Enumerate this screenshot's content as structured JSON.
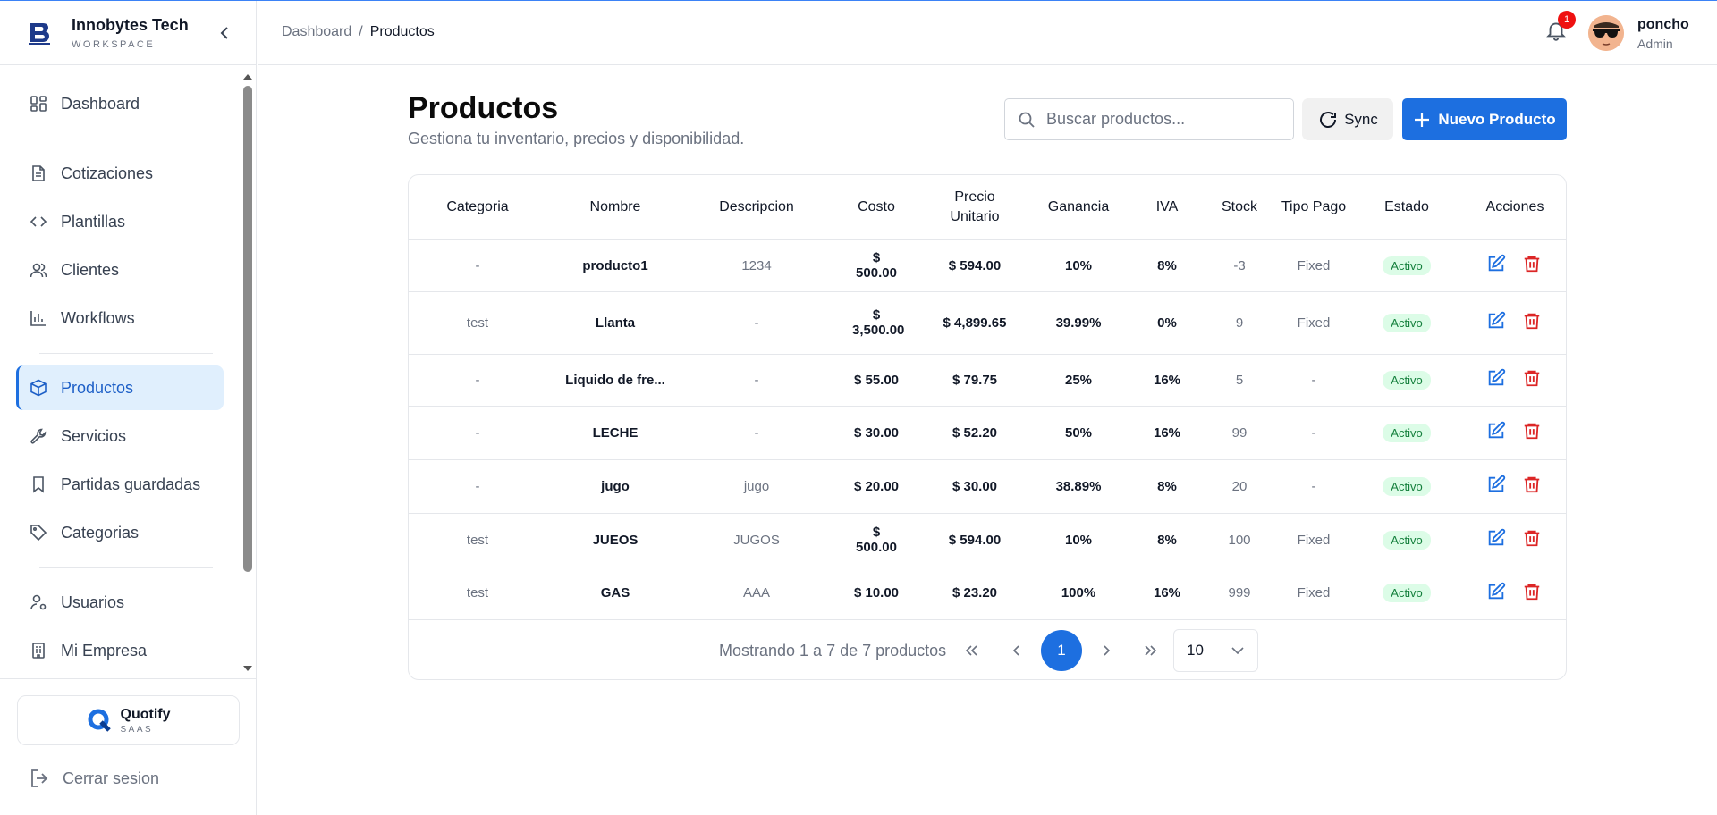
{
  "brand": {
    "name": "Innobytes Tech",
    "sub": "WORKSPACE"
  },
  "sidebar": {
    "items": [
      {
        "label": "Dashboard",
        "icon": "dashboard-icon"
      },
      {
        "label": "Cotizaciones",
        "icon": "document-icon"
      },
      {
        "label": "Plantillas",
        "icon": "code-icon"
      },
      {
        "label": "Clientes",
        "icon": "users-icon"
      },
      {
        "label": "Workflows",
        "icon": "bar-chart-icon"
      },
      {
        "label": "Productos",
        "icon": "box-icon",
        "active": true
      },
      {
        "label": "Servicios",
        "icon": "wrench-icon"
      },
      {
        "label": "Partidas guardadas",
        "icon": "bookmark-icon"
      },
      {
        "label": "Categorias",
        "icon": "tag-icon"
      },
      {
        "label": "Usuarios",
        "icon": "user-gear-icon"
      },
      {
        "label": "Mi Empresa",
        "icon": "building-icon"
      }
    ],
    "footer": {
      "name": "Quotify",
      "sub": "SAAS"
    },
    "logout": "Cerrar sesion"
  },
  "header": {
    "breadcrumb": {
      "parent": "Dashboard",
      "separator": "/",
      "current": "Productos"
    },
    "notifications": "1",
    "user": {
      "name": "poncho",
      "role": "Admin"
    }
  },
  "main": {
    "title": "Productos",
    "subtitle": "Gestiona tu inventario, precios y disponibilidad.",
    "search_placeholder": "Buscar productos...",
    "sync_label": "Sync",
    "new_label": "Nuevo Producto"
  },
  "table": {
    "headers": [
      "Categoria",
      "Nombre",
      "Descripcion",
      "Costo",
      "Precio Unitario",
      "Ganancia",
      "IVA",
      "Stock",
      "Tipo Pago",
      "Estado",
      "Acciones"
    ],
    "rows": [
      [
        "-",
        "producto1",
        "1234",
        "$ 500.00",
        "$ 594.00",
        "10%",
        "8%",
        "-3",
        "Fixed",
        "Activo"
      ],
      [
        "test",
        "Llanta",
        "-",
        "$ 3,500.00",
        "$ 4,899.65",
        "39.99%",
        "0%",
        "9",
        "Fixed",
        "Activo"
      ],
      [
        "-",
        "Liquido de fre...",
        "-",
        "$ 55.00",
        "$ 79.75",
        "25%",
        "16%",
        "5",
        "-",
        "Activo"
      ],
      [
        "-",
        "LECHE",
        "-",
        "$ 30.00",
        "$ 52.20",
        "50%",
        "16%",
        "99",
        "-",
        "Activo"
      ],
      [
        "-",
        "jugo",
        "jugo",
        "$ 20.00",
        "$ 30.00",
        "38.89%",
        "8%",
        "20",
        "-",
        "Activo"
      ],
      [
        "test",
        "JUEOS",
        "JUGOS",
        "$ 500.00",
        "$ 594.00",
        "10%",
        "8%",
        "100",
        "Fixed",
        "Activo"
      ],
      [
        "test",
        "GAS",
        "AAA",
        "$ 10.00",
        "$ 23.20",
        "100%",
        "16%",
        "999",
        "Fixed",
        "Activo"
      ]
    ]
  },
  "pagination": {
    "summary": "Mostrando 1 a 7 de 7 productos",
    "current_page": "1",
    "page_size": "10"
  },
  "colors": {
    "accent": "#1d6fe0",
    "active_bg": "#e0effd",
    "badge_bg": "#dcfce7",
    "badge_text": "#15803d",
    "danger": "#dc2626"
  }
}
